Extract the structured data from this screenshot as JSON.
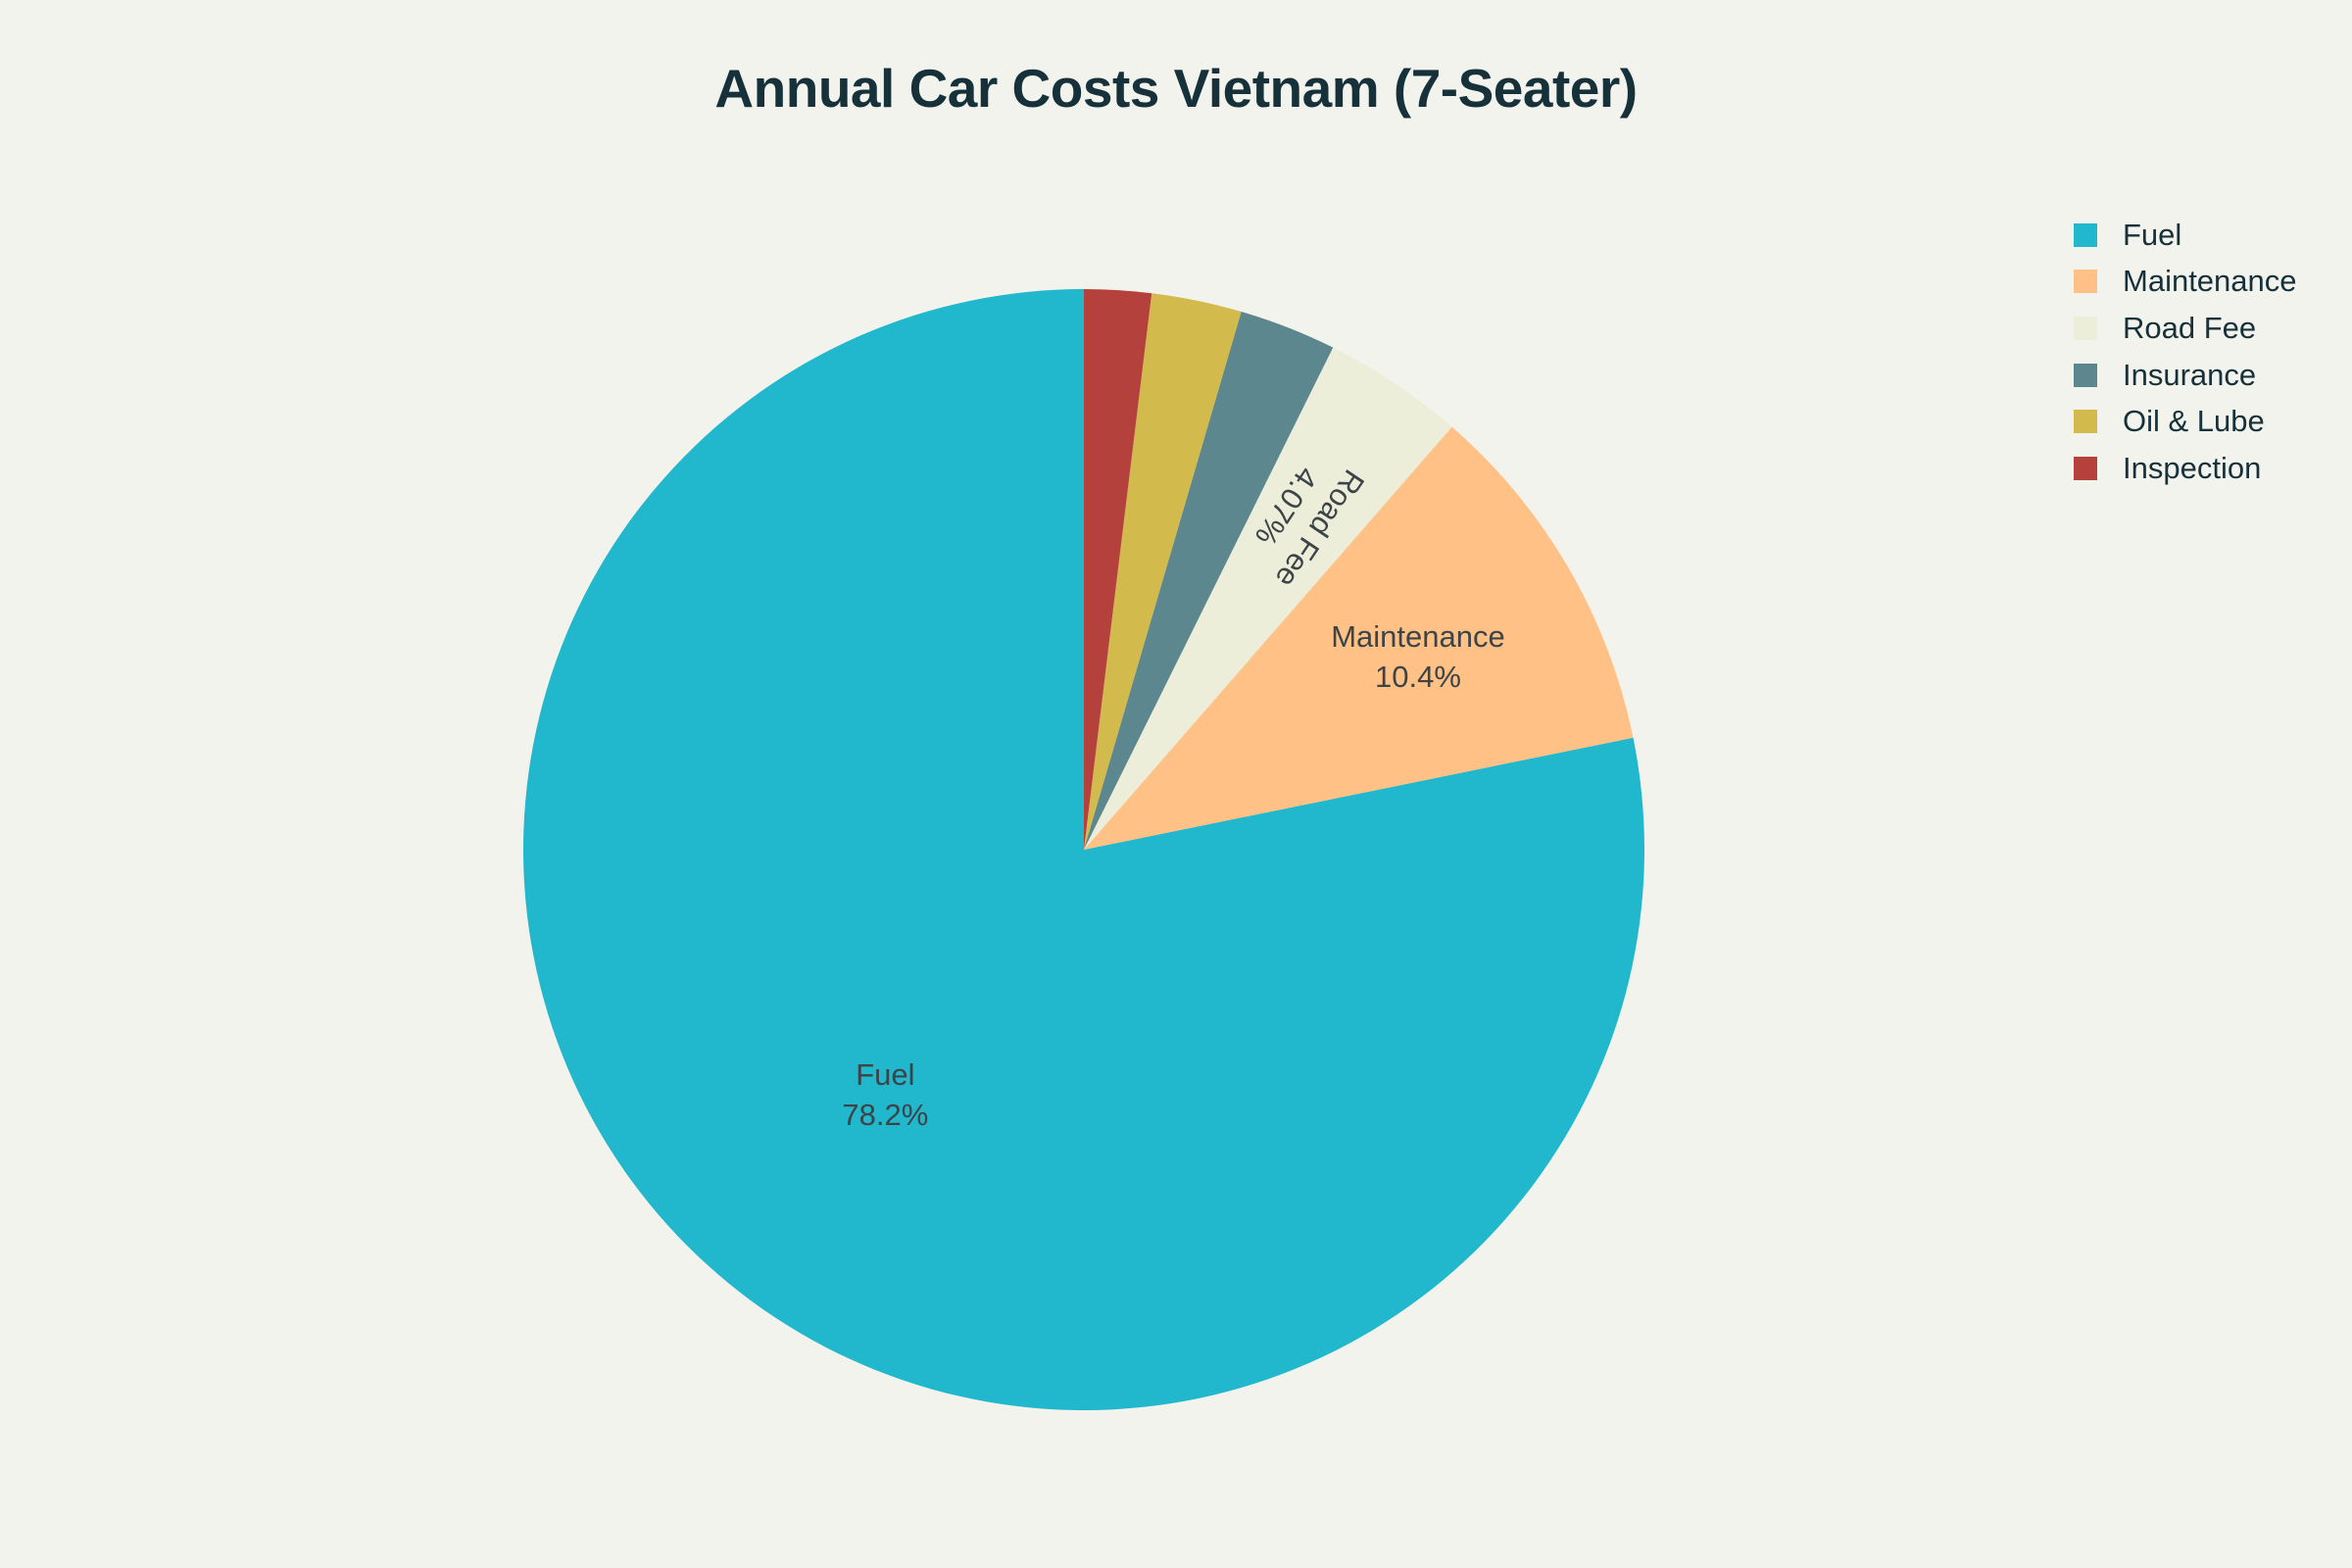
{
  "chart_data": {
    "type": "pie",
    "title": "Annual Car Costs Vietnam (7-Seater)",
    "start": "top",
    "direction": "counterclockwise",
    "legend_position": "top-right",
    "slices": [
      {
        "label": "Fuel",
        "value": 78.2,
        "text": "78.2%",
        "color": "#21b7cc",
        "show_label": true
      },
      {
        "label": "Maintenance",
        "value": 10.4,
        "text": "10.4%",
        "color": "#ffc185",
        "show_label": true
      },
      {
        "label": "Road Fee",
        "value": 4.07,
        "text": "4.07%",
        "color": "#eceed9",
        "show_label": true
      },
      {
        "label": "Insurance",
        "value": 2.8,
        "text": "",
        "color": "#5d878f",
        "show_label": false
      },
      {
        "label": "Oil & Lube",
        "value": 2.6,
        "text": "",
        "color": "#d2ba4c",
        "show_label": false
      },
      {
        "label": "Inspection",
        "value": 1.93,
        "text": "",
        "color": "#b4413c",
        "show_label": false
      }
    ]
  }
}
